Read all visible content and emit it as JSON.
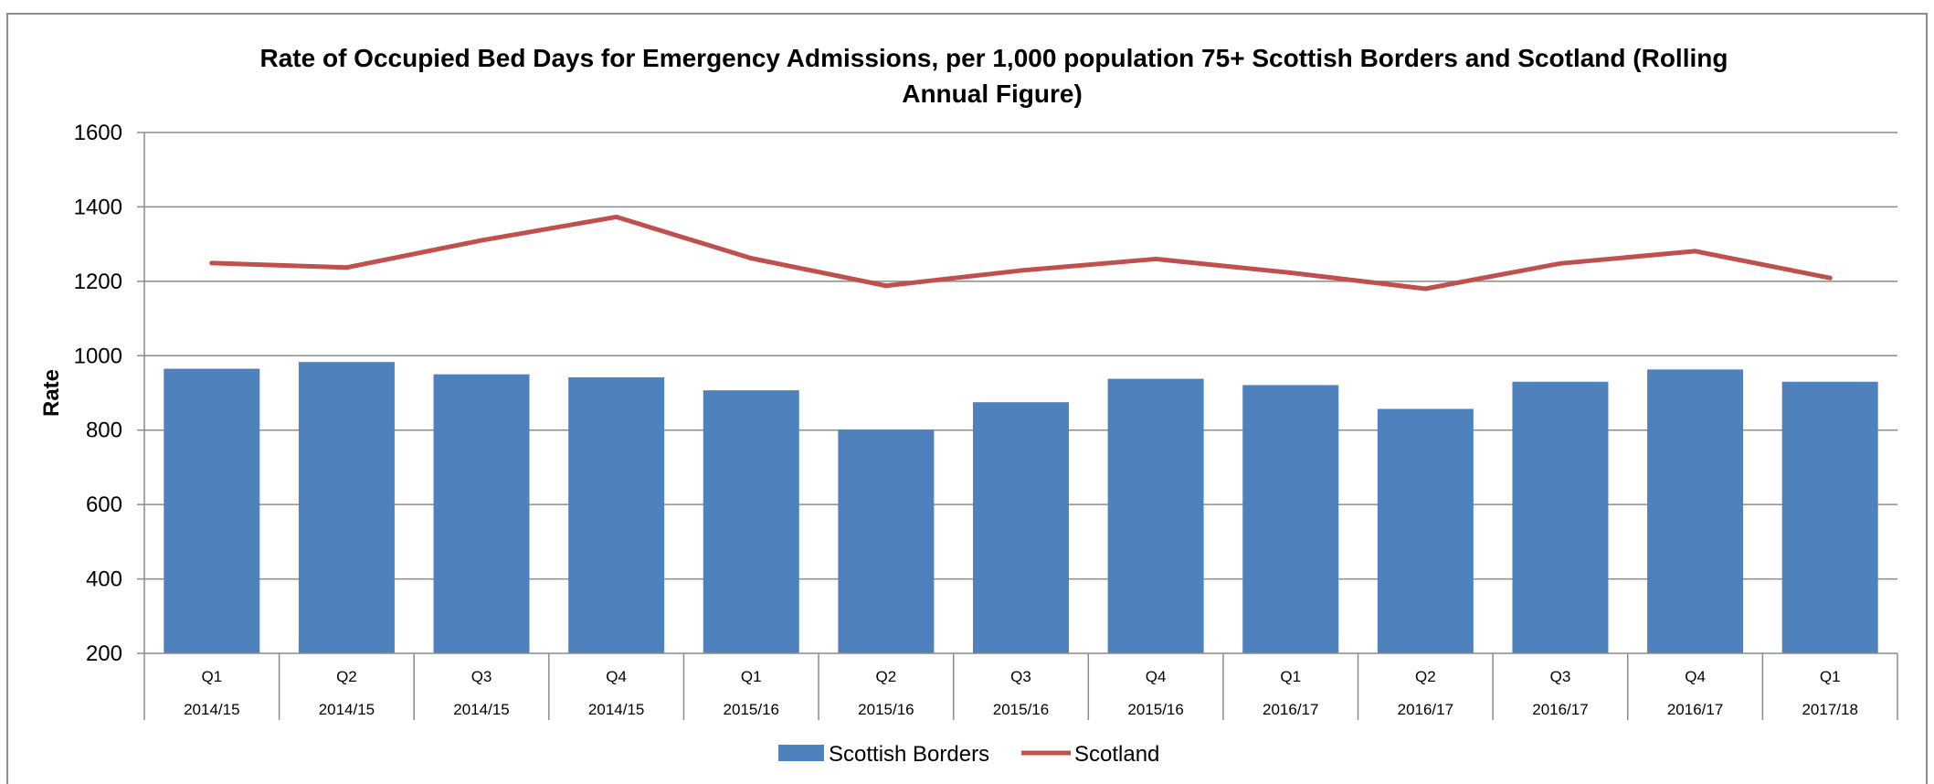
{
  "chart_data": {
    "type": "bar",
    "title_line1": "Rate of Occupied Bed Days for Emergency Admissions, per 1,000 population 75+ Scottish Borders and Scotland (Rolling",
    "title_line2": "Annual Figure)",
    "ylabel": "Rate",
    "xlabel": "",
    "ylim": [
      200,
      1600
    ],
    "yticks": [
      "200",
      "400",
      "600",
      "800",
      "1000",
      "1200",
      "1400",
      "1600"
    ],
    "grid": true,
    "legend_position": "bottom",
    "categories": [
      {
        "quarter": "Q1",
        "year": "2014/15"
      },
      {
        "quarter": "Q2",
        "year": "2014/15"
      },
      {
        "quarter": "Q3",
        "year": "2014/15"
      },
      {
        "quarter": "Q4",
        "year": "2014/15"
      },
      {
        "quarter": "Q1",
        "year": "2015/16"
      },
      {
        "quarter": "Q2",
        "year": "2015/16"
      },
      {
        "quarter": "Q3",
        "year": "2015/16"
      },
      {
        "quarter": "Q4",
        "year": "2015/16"
      },
      {
        "quarter": "Q1",
        "year": "2016/17"
      },
      {
        "quarter": "Q2",
        "year": "2016/17"
      },
      {
        "quarter": "Q3",
        "year": "2016/17"
      },
      {
        "quarter": "Q4",
        "year": "2016/17"
      },
      {
        "quarter": "Q1",
        "year": "2017/18"
      }
    ],
    "series": [
      {
        "name": "Scottish Borders",
        "type": "bar",
        "color": "#4f81bd",
        "values": [
          965,
          983,
          950,
          942,
          907,
          801,
          875,
          938,
          921,
          857,
          930,
          963,
          930
        ]
      },
      {
        "name": "Scotland",
        "type": "line",
        "color": "#c0504d",
        "values": [
          1249,
          1237,
          1310,
          1373,
          1262,
          1188,
          1229,
          1260,
          1223,
          1180,
          1248,
          1281,
          1209
        ]
      }
    ]
  }
}
